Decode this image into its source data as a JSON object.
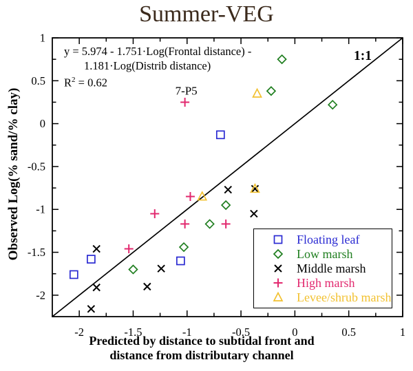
{
  "title": "Summer-VEG",
  "equation": {
    "line1": "y = 5.974 - 1.751·Log(Frontal distance) -",
    "line2": "1.181·Log(Distrib distance)",
    "r2_base": "R",
    "r2_exp": "2",
    "r2_value": " = 0.62"
  },
  "chart_data": {
    "type": "scatter",
    "title": "Summer-VEG",
    "xlabel": [
      "Predicted by distance to subtidal front and",
      "distance from distributary channel"
    ],
    "ylabel": "Observed Log(% sand/% clay)",
    "xlim": [
      -2.25,
      1
    ],
    "ylim": [
      -2.25,
      1
    ],
    "grid": false,
    "legend_position": "lower right",
    "ticks": {
      "values": [
        -2,
        -1.5,
        -1,
        -0.5,
        0,
        0.5,
        1
      ],
      "labels": [
        "-2",
        "-1.5",
        "-1",
        "-0.5",
        "0",
        "0.5",
        "1"
      ],
      "minor_step": 0.25
    },
    "reference_line": {
      "label": "1:1",
      "from": [
        -2.25,
        -2.25
      ],
      "to": [
        1,
        1
      ]
    },
    "equation_text": "y = 5.974 - 1.751·Log(Frontal distance) - 1.181·Log(Distrib distance)",
    "r_squared": 0.62,
    "annotations": [
      {
        "text": "7-P5",
        "x": -1.02,
        "y": 0.25
      }
    ],
    "series": [
      {
        "name": "Floating leaf",
        "marker": "square",
        "color": "#2a2ad2",
        "points": [
          [
            -0.69,
            -0.13
          ],
          [
            -1.06,
            -1.6
          ],
          [
            -1.89,
            -1.58
          ],
          [
            -2.05,
            -1.76
          ]
        ]
      },
      {
        "name": "Low marsh",
        "marker": "diamond",
        "color": "#1f7e1f",
        "points": [
          [
            -0.12,
            0.75
          ],
          [
            -0.22,
            0.38
          ],
          [
            0.35,
            0.22
          ],
          [
            -0.64,
            -0.95
          ],
          [
            -0.79,
            -1.17
          ],
          [
            -1.03,
            -1.44
          ],
          [
            -1.5,
            -1.7
          ]
        ]
      },
      {
        "name": "Middle marsh",
        "marker": "x",
        "color": "#000000",
        "points": [
          [
            -0.62,
            -0.77
          ],
          [
            -0.37,
            -0.76
          ],
          [
            -0.38,
            -1.05
          ],
          [
            -1.84,
            -1.46
          ],
          [
            -1.24,
            -1.69
          ],
          [
            -1.37,
            -1.9
          ],
          [
            -1.84,
            -1.91
          ],
          [
            -1.89,
            -2.16
          ]
        ]
      },
      {
        "name": "High marsh",
        "marker": "plus",
        "color": "#e2286e",
        "points": [
          [
            -1.02,
            0.25
          ],
          [
            -0.97,
            -0.85
          ],
          [
            -1.3,
            -1.05
          ],
          [
            -1.02,
            -1.17
          ],
          [
            -0.64,
            -1.17
          ],
          [
            -1.54,
            -1.46
          ]
        ]
      },
      {
        "name": "Levee/shrub marsh",
        "marker": "triangle",
        "color": "#f2c130",
        "points": [
          [
            -0.35,
            0.35
          ],
          [
            -0.37,
            -0.76
          ],
          [
            -0.86,
            -0.85
          ]
        ]
      }
    ]
  }
}
